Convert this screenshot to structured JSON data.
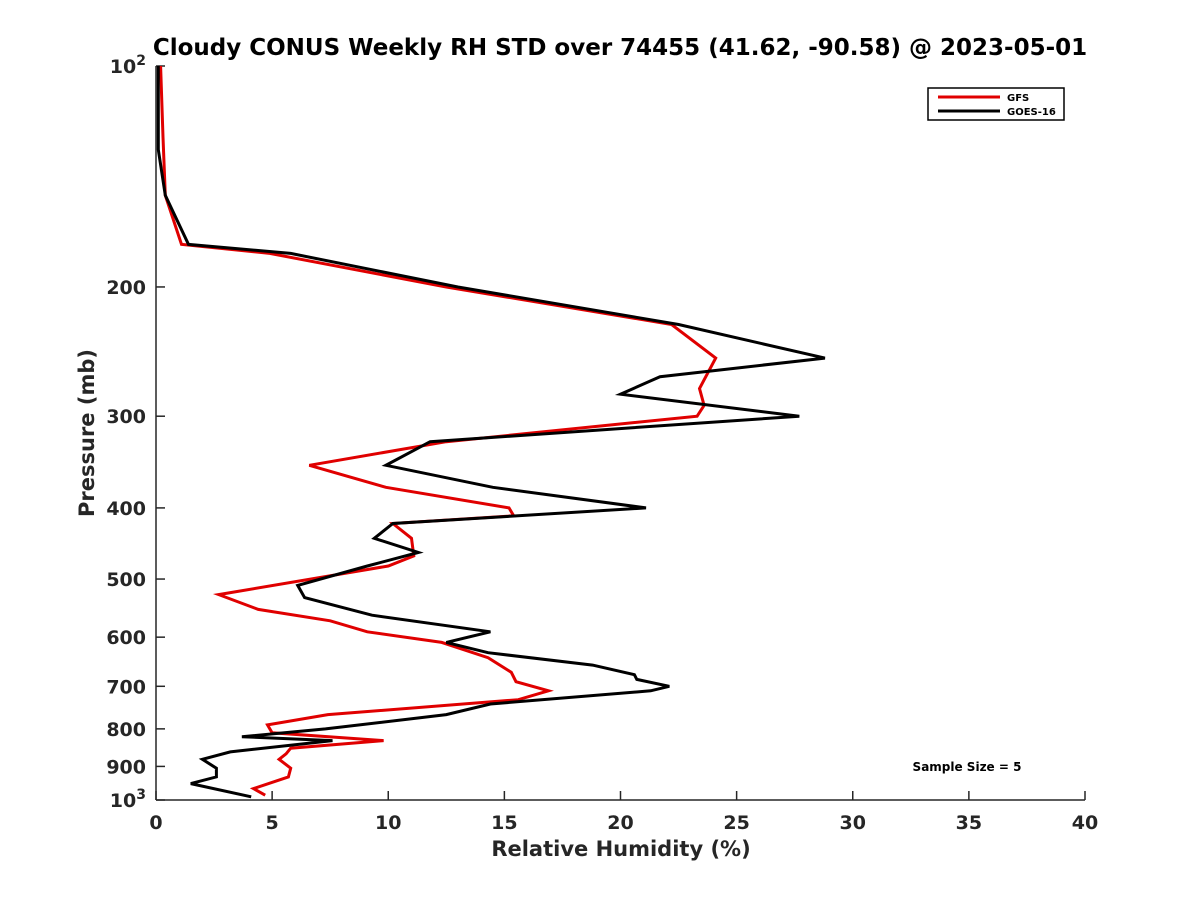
{
  "chart_data": {
    "type": "line",
    "title": "Cloudy CONUS Weekly RH STD over 74455 (41.62, -90.58) @ 2023-05-01",
    "xlabel": "Relative Humidity (%)",
    "ylabel": "Pressure (mb)",
    "xlim": [
      0,
      40
    ],
    "ylim": [
      100,
      1000
    ],
    "y_scale": "log",
    "y_reversed": true,
    "grid": false,
    "legend_position": "top-right",
    "x_ticks": [
      "0",
      "5",
      "10",
      "15",
      "20",
      "25",
      "30",
      "35",
      "40"
    ],
    "x_tick_values": [
      0,
      5,
      10,
      15,
      20,
      25,
      30,
      35,
      40
    ],
    "y_tick_values": [
      100,
      200,
      300,
      400,
      500,
      600,
      700,
      800,
      900,
      1000
    ],
    "y_ticks": [
      {
        "value": 100,
        "base": "10",
        "exp": "2"
      },
      {
        "value": 200,
        "label": "200"
      },
      {
        "value": 300,
        "label": "300"
      },
      {
        "value": 400,
        "label": "400"
      },
      {
        "value": 500,
        "label": "500"
      },
      {
        "value": 600,
        "label": "600"
      },
      {
        "value": 700,
        "label": "700"
      },
      {
        "value": 800,
        "label": "800"
      },
      {
        "value": 900,
        "label": "900"
      },
      {
        "value": 1000,
        "base": "10",
        "exp": "3"
      }
    ],
    "annotation": "Sample Size = 5",
    "series": [
      {
        "name": "GFS",
        "color": "#e00000",
        "points": [
          [
            0.2,
            100
          ],
          [
            0.3,
            125
          ],
          [
            0.4,
            150
          ],
          [
            1.1,
            175
          ],
          [
            4.9,
            180
          ],
          [
            12.5,
            200
          ],
          [
            22.2,
            225
          ],
          [
            24.1,
            250
          ],
          [
            23.4,
            275
          ],
          [
            23.6,
            290
          ],
          [
            23.3,
            300
          ],
          [
            12.5,
            325
          ],
          [
            6.6,
            350
          ],
          [
            9.9,
            375
          ],
          [
            15.2,
            400
          ],
          [
            15.4,
            410
          ],
          [
            10.2,
            420
          ],
          [
            11.0,
            440
          ],
          [
            11.1,
            465
          ],
          [
            10.0,
            480
          ],
          [
            2.7,
            525
          ],
          [
            4.4,
            550
          ],
          [
            7.5,
            570
          ],
          [
            9.1,
            590
          ],
          [
            12.3,
            610
          ],
          [
            14.3,
            640
          ],
          [
            15.3,
            670
          ],
          [
            15.5,
            690
          ],
          [
            16.9,
            710
          ],
          [
            15.6,
            730
          ],
          [
            7.4,
            765
          ],
          [
            4.8,
            790
          ],
          [
            5.0,
            810
          ],
          [
            9.8,
            830
          ],
          [
            5.8,
            850
          ],
          [
            5.6,
            865
          ],
          [
            5.3,
            880
          ],
          [
            5.8,
            905
          ],
          [
            5.7,
            930
          ],
          [
            4.2,
            965
          ],
          [
            4.7,
            985
          ]
        ]
      },
      {
        "name": "GOES-16",
        "color": "#000000",
        "points": [
          [
            0.1,
            100
          ],
          [
            0.1,
            130
          ],
          [
            0.4,
            150
          ],
          [
            1.4,
            175
          ],
          [
            5.8,
            180
          ],
          [
            13.0,
            200
          ],
          [
            22.5,
            225
          ],
          [
            28.8,
            250
          ],
          [
            21.7,
            265
          ],
          [
            20.0,
            280
          ],
          [
            27.7,
            300
          ],
          [
            11.8,
            325
          ],
          [
            9.9,
            350
          ],
          [
            14.5,
            375
          ],
          [
            21.1,
            400
          ],
          [
            10.2,
            420
          ],
          [
            9.4,
            440
          ],
          [
            11.3,
            460
          ],
          [
            9.1,
            480
          ],
          [
            6.1,
            510
          ],
          [
            6.4,
            530
          ],
          [
            9.3,
            560
          ],
          [
            14.4,
            590
          ],
          [
            12.5,
            610
          ],
          [
            14.3,
            630
          ],
          [
            18.8,
            655
          ],
          [
            20.6,
            675
          ],
          [
            20.7,
            685
          ],
          [
            22.1,
            700
          ],
          [
            21.3,
            710
          ],
          [
            14.4,
            740
          ],
          [
            12.5,
            765
          ],
          [
            7.3,
            800
          ],
          [
            3.7,
            820
          ],
          [
            7.6,
            830
          ],
          [
            3.2,
            860
          ],
          [
            2.0,
            880
          ],
          [
            2.6,
            905
          ],
          [
            2.6,
            930
          ],
          [
            1.5,
            950
          ],
          [
            4.1,
            990
          ]
        ]
      }
    ]
  }
}
